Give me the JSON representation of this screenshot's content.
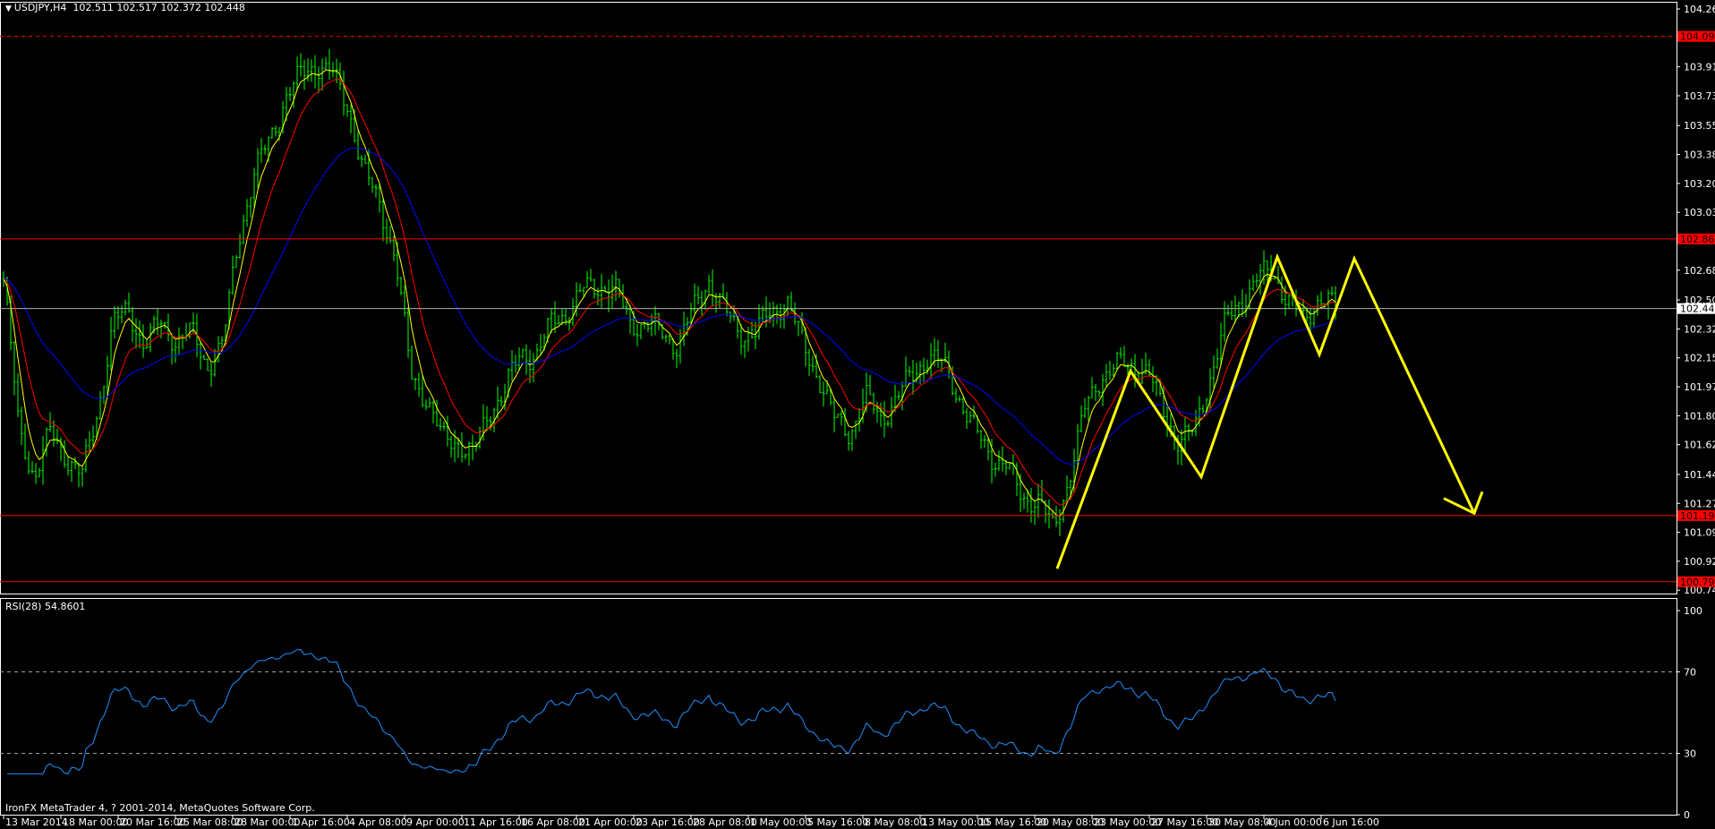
{
  "header": {
    "arrow_icon": "triangle-down-icon",
    "symbol": "USDJPY,H4",
    "ohlc": "102.511 102.517 102.372 102.448"
  },
  "footer": {
    "text": "IronFX MetaTrader 4, ? 2001-2014, MetaQuotes Software Corp."
  },
  "colors": {
    "background": "#000000",
    "bars": "#00ff00",
    "ma_fast": "#ffff00",
    "ma_mid": "#ff0000",
    "ma_slow": "#0000ff",
    "rsi": "#1e90ff",
    "levels": "#ff0000",
    "current": "#b0b0b0",
    "drawing": "#ffff00",
    "axis_text": "#ffffff"
  },
  "chart_data": [
    {
      "type": "line",
      "title": "USDJPY,H4",
      "ylim": [
        100.745,
        104.26
      ],
      "price_ticks": [
        "104.260",
        "103.910",
        "103.735",
        "103.555",
        "103.380",
        "103.205",
        "103.030",
        "102.680",
        "102.500",
        "102.325",
        "102.150",
        "101.975",
        "101.800",
        "101.625",
        "101.445",
        "101.270",
        "101.095",
        "100.920",
        "100.745"
      ],
      "price_tick_values": [
        104.26,
        103.91,
        103.735,
        103.555,
        103.38,
        103.205,
        103.03,
        102.68,
        102.5,
        102.325,
        102.15,
        101.975,
        101.8,
        101.625,
        101.445,
        101.27,
        101.095,
        100.92,
        100.745
      ],
      "x_ticks": [
        "13 Mar 2014",
        "18 Mar 00:00",
        "20 Mar 16:00",
        "25 Mar 08:00",
        "28 Mar 00:00",
        "1 Apr 16:00",
        "4 Apr 08:00",
        "9 Apr 00:00",
        "11 Apr 16:00",
        "16 Apr 08:00",
        "21 Apr 00:00",
        "23 Apr 16:00",
        "28 Apr 08:00",
        "1 May 00:00",
        "5 May 16:00",
        "8 May 08:00",
        "13 May 00:00",
        "15 May 16:00",
        "20 May 08:00",
        "23 May 00:00",
        "27 May 16:00",
        "30 May 08:00",
        "4 Jun 00:00",
        "6 Jun 16:00"
      ],
      "approx_close": [
        102.63,
        101.7,
        101.43,
        101.7,
        101.56,
        101.43,
        101.83,
        102.36,
        102.43,
        102.23,
        102.36,
        102.26,
        102.3,
        102.1,
        102.23,
        102.88,
        103.27,
        103.47,
        103.73,
        103.86,
        103.93,
        103.86,
        103.67,
        103.27,
        103.08,
        102.76,
        102.04,
        101.91,
        101.65,
        101.65,
        101.56,
        101.83,
        101.96,
        102.17,
        102.17,
        102.36,
        102.43,
        102.56,
        102.59,
        102.56,
        102.36,
        102.36,
        102.3,
        102.23,
        102.43,
        102.63,
        102.43,
        102.3,
        102.3,
        102.43,
        102.5,
        102.23,
        102.04,
        101.78,
        101.7,
        101.91,
        101.78,
        101.91,
        102.04,
        102.17,
        102.1,
        101.91,
        101.7,
        101.56,
        101.5,
        101.3,
        101.3,
        101.1,
        101.43,
        101.83,
        102.04,
        102.1,
        102.1,
        102.07,
        101.83,
        101.65,
        101.7,
        102.04,
        102.36,
        102.5,
        102.63,
        102.67,
        102.5,
        102.36,
        102.53,
        102.448
      ],
      "levels": [
        {
          "label": "104.094",
          "value": 104.094,
          "style": "dashed"
        },
        {
          "label": "102.869",
          "value": 102.869,
          "style": "solid"
        },
        {
          "label": "102.448",
          "value": 102.448,
          "style": "current"
        },
        {
          "label": "101.196",
          "value": 101.196,
          "style": "solid"
        },
        {
          "label": "100.796",
          "value": 100.796,
          "style": "solid"
        }
      ],
      "drawing_zigzag_prices": [
        100.875,
        102.07,
        101.43,
        102.76,
        102.17,
        102.75,
        101.21
      ]
    },
    {
      "type": "line",
      "title": "RSI(28) 54.8601",
      "ylim": [
        0,
        100
      ],
      "y_ticks": [
        "100",
        "70",
        "30",
        "0"
      ],
      "y_tick_values": [
        100,
        70,
        30,
        0
      ],
      "levels": [
        70,
        30
      ]
    }
  ]
}
